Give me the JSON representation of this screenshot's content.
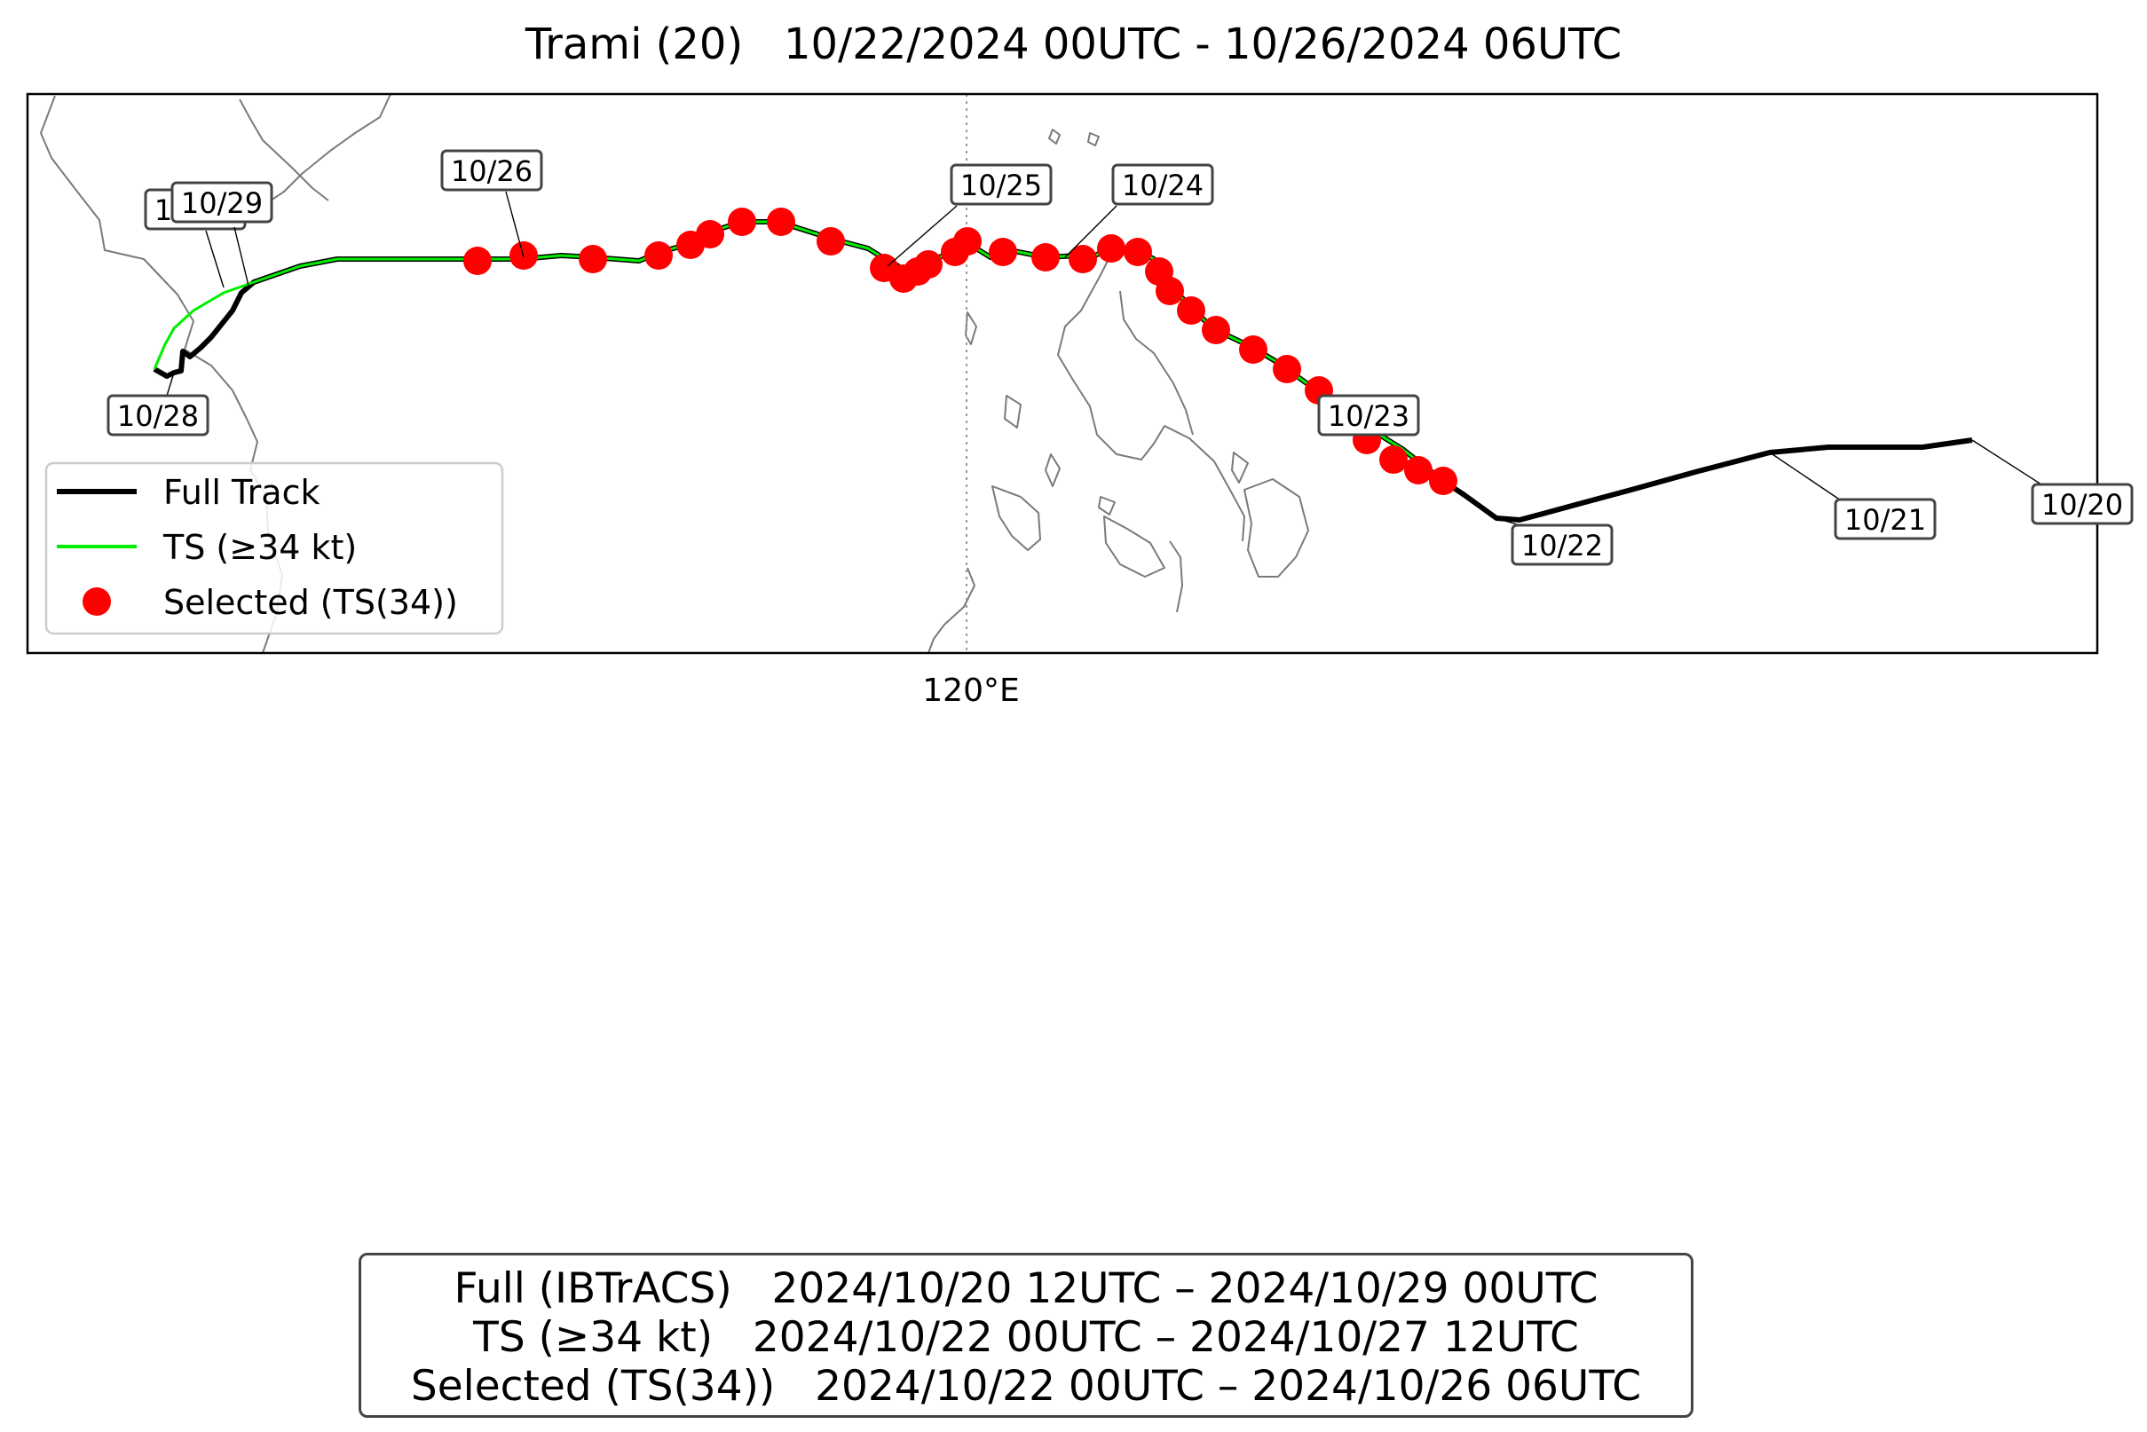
{
  "title": "Trami (20)   10/22/2024 00UTC - 10/26/2024 06UTC",
  "axis": {
    "xtick_label": "120°E"
  },
  "legend": {
    "placement": "lower-left",
    "items": [
      {
        "label": "Full Track",
        "color": "#000000",
        "kind": "line"
      },
      {
        "label": "TS (≥34 kt)",
        "color": "#00ff00",
        "kind": "line"
      },
      {
        "label": "Selected (TS(34))",
        "color": "#ff0000",
        "kind": "marker"
      }
    ]
  },
  "date_labels": [
    "10/20",
    "10/21",
    "10/22",
    "10/23",
    "10/24",
    "10/25",
    "10/26",
    "10/27",
    "10/28",
    "10/29"
  ],
  "summary": {
    "line1": "Full (IBTrACS)   2024/10/20 12UTC – 2024/10/29 00UTC",
    "line2": "TS (≥34 kt)   2024/10/22 00UTC – 2024/10/27 12UTC",
    "line3": "Selected (TS(34))   2024/10/22 00UTC – 2024/10/26 06UTC"
  },
  "colors": {
    "full_track": "#000000",
    "ts_track": "#00ff00",
    "selected": "#ff0000",
    "coast": "#7a7a7a"
  }
}
